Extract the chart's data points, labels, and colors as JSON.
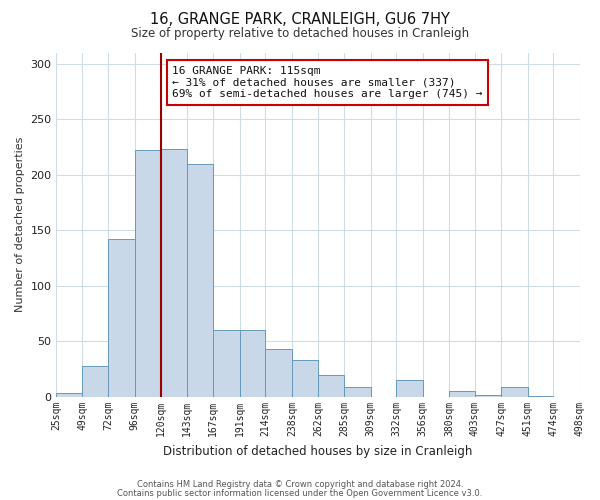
{
  "title": "16, GRANGE PARK, CRANLEIGH, GU6 7HY",
  "subtitle": "Size of property relative to detached houses in Cranleigh",
  "xlabel": "Distribution of detached houses by size in Cranleigh",
  "ylabel": "Number of detached properties",
  "categories": [
    "25sqm",
    "49sqm",
    "72sqm",
    "96sqm",
    "120sqm",
    "143sqm",
    "167sqm",
    "191sqm",
    "214sqm",
    "238sqm",
    "262sqm",
    "285sqm",
    "309sqm",
    "332sqm",
    "356sqm",
    "380sqm",
    "403sqm",
    "427sqm",
    "451sqm",
    "474sqm",
    "498sqm"
  ],
  "bar_values": [
    3,
    28,
    142,
    222,
    223,
    210,
    60,
    60,
    43,
    33,
    20,
    9,
    0,
    15,
    0,
    5,
    2,
    9,
    1,
    0
  ],
  "bin_edges": [
    25,
    49,
    72,
    96,
    120,
    143,
    167,
    191,
    214,
    238,
    262,
    285,
    309,
    332,
    356,
    380,
    403,
    427,
    451,
    474,
    498
  ],
  "property_line_x": 120,
  "property_line_label": "16 GRANGE PARK: 115sqm",
  "annotation_line1": "← 31% of detached houses are smaller (337)",
  "annotation_line2": "69% of semi-detached houses are larger (745) →",
  "bar_color": "#c8d8e8",
  "bar_edge_color": "#6699bb",
  "line_color": "#990000",
  "annotation_box_edge": "#cc0000",
  "background_color": "#ffffff",
  "grid_color": "#ccdde8",
  "ylim": [
    0,
    310
  ],
  "yticks": [
    0,
    50,
    100,
    150,
    200,
    250,
    300
  ],
  "footer_line1": "Contains HM Land Registry data © Crown copyright and database right 2024.",
  "footer_line2": "Contains public sector information licensed under the Open Government Licence v3.0."
}
